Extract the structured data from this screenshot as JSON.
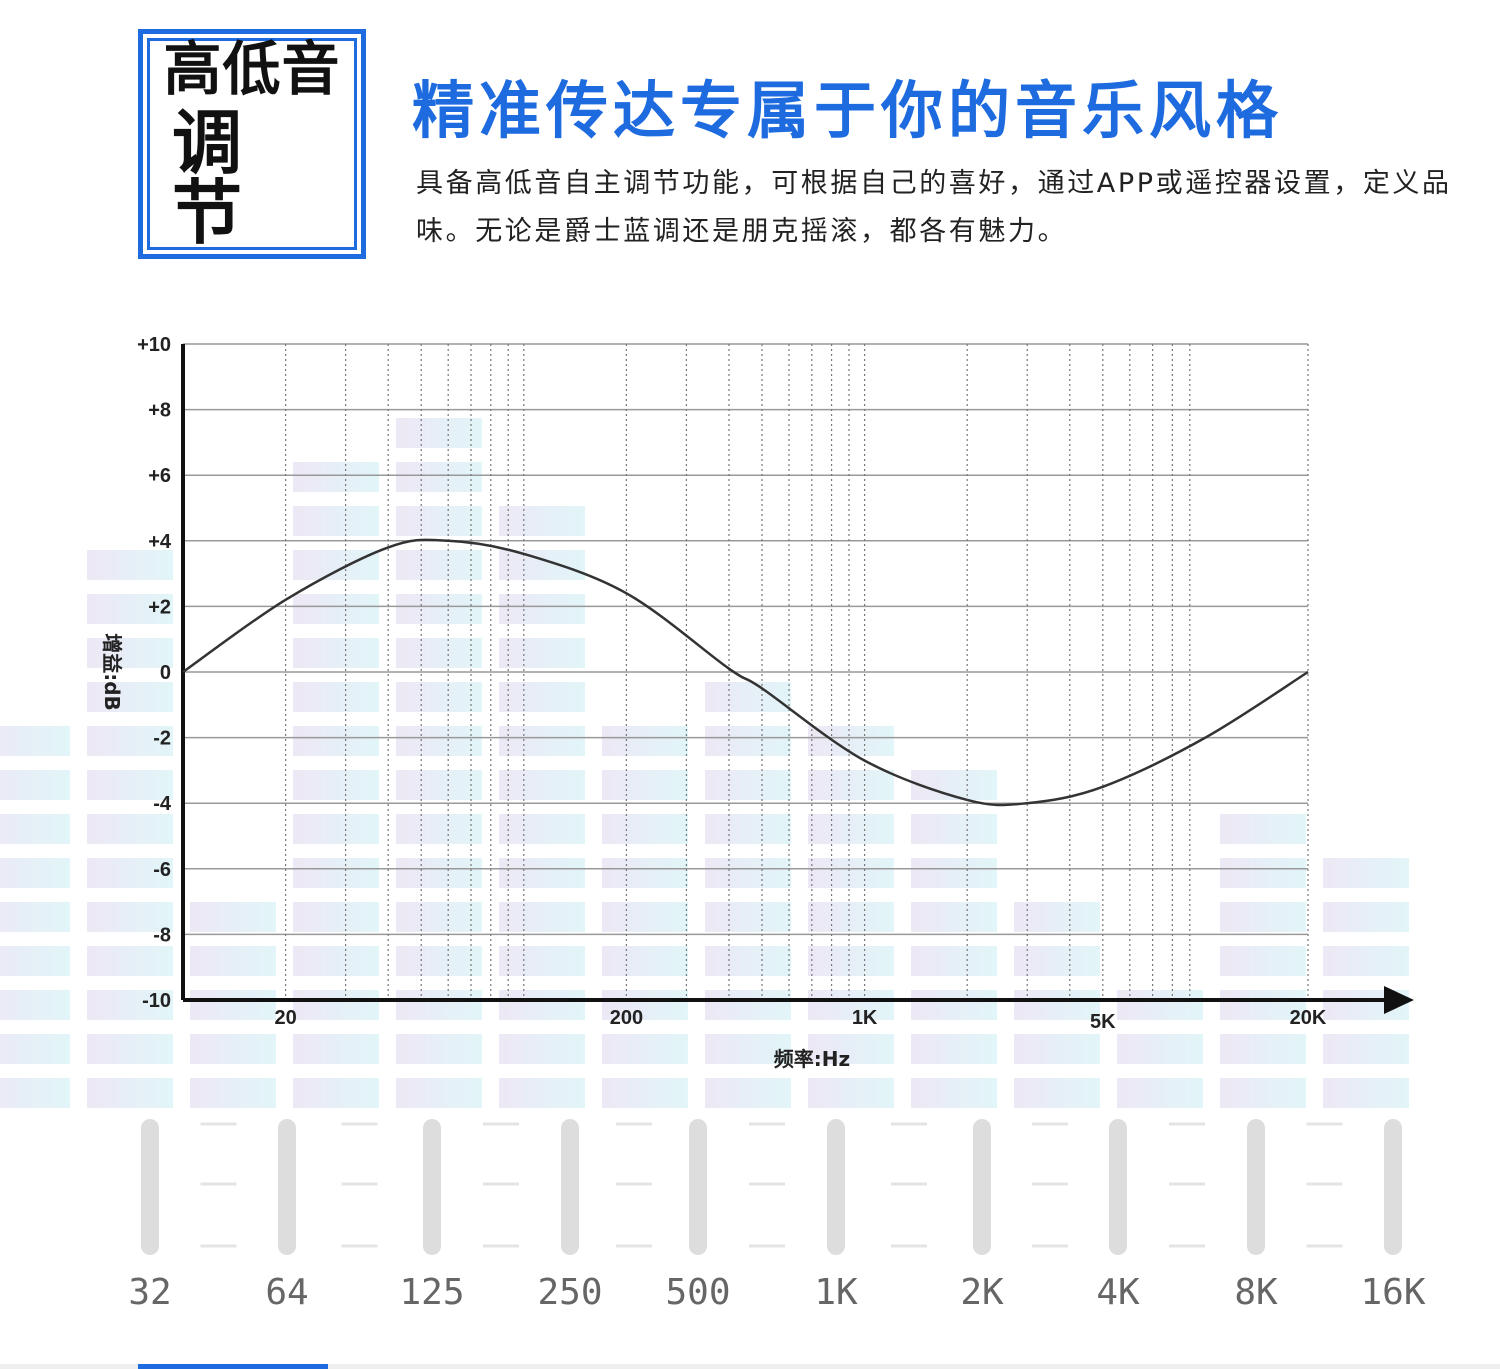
{
  "header": {
    "badge_line1": "高低音",
    "badge_line2": "调节",
    "headline": "精准传达专属于你的音乐风格",
    "description": "具备高低音自主调节功能，可根据自己的喜好，通过APP或遥控器设置，定义品味。无论是爵士蓝调还是朋克摇滚，都各有魅力。"
  },
  "colors": {
    "accent": "#1e6be0",
    "curve": "#333333",
    "grid": "#8a8a8a"
  },
  "chart_data": {
    "type": "line",
    "title": "",
    "xlabel": "频率:Hz",
    "ylabel": "增益:dB",
    "x_scale": "log",
    "xlim": [
      10,
      20000
    ],
    "ylim": [
      -10,
      10
    ],
    "yticks": [
      "+10",
      "+8",
      "+6",
      "+4",
      "+2",
      "0",
      "-2",
      "-4",
      "-6",
      "-8",
      "-10"
    ],
    "xticks": [
      {
        "value": 20,
        "label": "20"
      },
      {
        "value": 200,
        "label": "200"
      },
      {
        "value": 1000,
        "label": "1K"
      },
      {
        "value": 5000,
        "label": "5K"
      },
      {
        "value": 20000,
        "label": "20K"
      }
    ],
    "grid": true,
    "series": [
      {
        "x": [
          10,
          20,
          40,
          60,
          100,
          200,
          400,
          500,
          1000,
          2000,
          3000,
          5000,
          10000,
          20000
        ],
        "y": [
          0,
          2.2,
          3.8,
          4.0,
          3.6,
          2.4,
          0.1,
          -0.5,
          -2.7,
          -3.9,
          -4.0,
          -3.5,
          -2.0,
          0
        ]
      }
    ]
  },
  "equalizer": {
    "bands": [
      "32",
      "64",
      "125",
      "250",
      "500",
      "1K",
      "2K",
      "4K",
      "8K",
      "16K"
    ]
  }
}
